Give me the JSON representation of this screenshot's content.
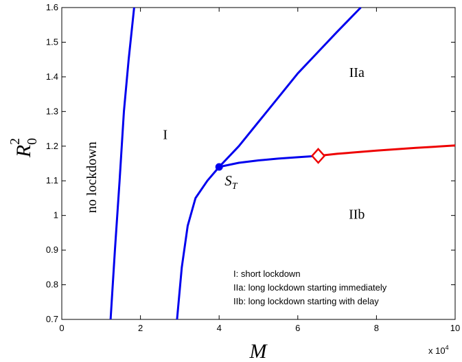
{
  "chart_data": {
    "type": "line",
    "title": "",
    "xlabel": "M",
    "ylabel_base": "R",
    "ylabel_sub": "0",
    "ylabel_sup": "2",
    "x_multiplier": "x 10",
    "x_multiplier_exp": "4",
    "xlim": [
      0,
      100000
    ],
    "ylim": [
      0.7,
      1.6
    ],
    "xticks": [
      0,
      20000,
      40000,
      60000,
      80000,
      100000
    ],
    "xtick_labels": [
      "0",
      "2",
      "4",
      "6",
      "8",
      "10"
    ],
    "yticks": [
      0.7,
      0.8,
      0.9,
      1.0,
      1.1,
      1.2,
      1.3,
      1.4,
      1.5,
      1.6
    ],
    "ytick_labels": [
      "0.7",
      "0.8",
      "0.9",
      "1",
      "1.1",
      "1.2",
      "1.3",
      "1.4",
      "1.5",
      "1.6"
    ],
    "grid": false,
    "series": [
      {
        "color": "#0000ee",
        "x": [
          12400,
          13500,
          14700,
          15800,
          17000,
          18400
        ],
        "y": [
          0.7,
          0.9,
          1.1,
          1.3,
          1.45,
          1.6
        ]
      },
      {
        "color": "#0000ee",
        "x": [
          29300,
          30500,
          32000,
          34000,
          37000,
          40000,
          45000,
          50000,
          55000,
          60000,
          65000,
          70000,
          76000
        ],
        "y": [
          0.7,
          0.85,
          0.97,
          1.05,
          1.1,
          1.14,
          1.2,
          1.27,
          1.34,
          1.41,
          1.47,
          1.53,
          1.6
        ]
      },
      {
        "color": "#0000ee",
        "x": [
          40000,
          45000,
          50000,
          55000,
          60000,
          65200
        ],
        "y": [
          1.14,
          1.152,
          1.159,
          1.164,
          1.168,
          1.172
        ]
      },
      {
        "color": "#ee0000",
        "x": [
          65200,
          70000,
          80000,
          90000,
          100000
        ],
        "y": [
          1.172,
          1.178,
          1.187,
          1.195,
          1.202
        ]
      }
    ],
    "markers": [
      {
        "shape": "dot",
        "x": 40000,
        "y": 1.14,
        "color": "#0000ee",
        "label_base": "S",
        "label_sub": "T"
      },
      {
        "shape": "diamond",
        "x": 65200,
        "y": 1.172,
        "color": "#ee0000"
      }
    ],
    "region_labels": [
      {
        "text": "no lockdown",
        "x": 8700,
        "y": 1.11,
        "rotate": true
      },
      {
        "text": "I",
        "x": 26300,
        "y": 1.22
      },
      {
        "text": "IIa",
        "x": 75000,
        "y": 1.4
      },
      {
        "text": "IIb",
        "x": 75000,
        "y": 0.99
      }
    ],
    "legend_text": [
      "I: short lockdown",
      "IIa: long lockdown starting immediately",
      "IIb: long lockdown starting with delay"
    ]
  }
}
